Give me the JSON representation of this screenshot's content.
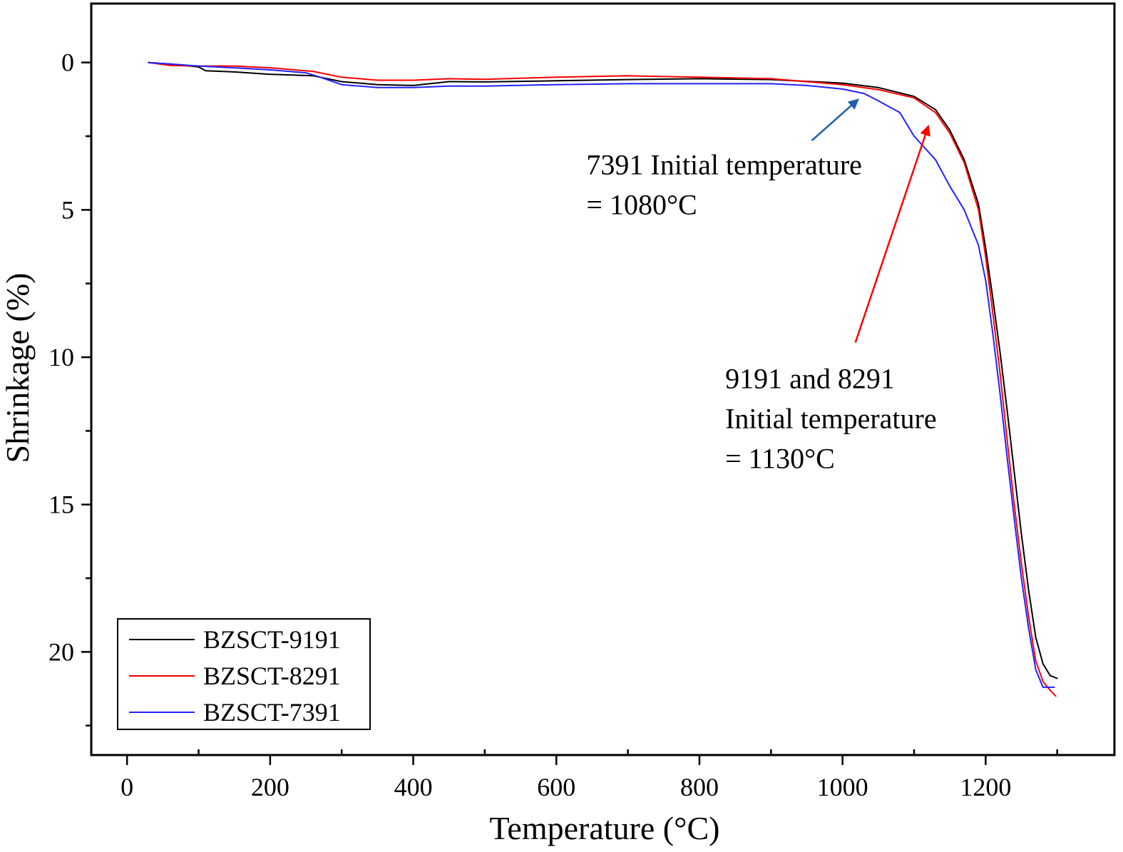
{
  "chart_data": {
    "type": "line",
    "xlabel": "Temperature (°C)",
    "ylabel": "Shrinkage (%)",
    "xlim": [
      -50,
      1380
    ],
    "ylim": [
      -2,
      23.5
    ],
    "y_inverted": true,
    "x_ticks": [
      0,
      200,
      400,
      600,
      800,
      1000,
      1200
    ],
    "x_tick_labels": [
      "0",
      "200",
      "400",
      "600",
      "800",
      "1000",
      "1200"
    ],
    "x_minor_ticks": [
      100,
      300,
      500,
      700,
      900,
      1100,
      1300
    ],
    "y_ticks": [
      0,
      5,
      10,
      15,
      20
    ],
    "y_tick_labels": [
      "0",
      "5",
      "10",
      "15",
      "20"
    ],
    "y_minor_ticks": [
      2.5,
      7.5,
      12.5,
      17.5,
      22.5
    ],
    "grid": false,
    "legend_position": "bottom-left",
    "series": [
      {
        "name": "BZSCT-9191",
        "color": "#000000",
        "x": [
          30,
          60,
          100,
          110,
          150,
          200,
          260,
          300,
          350,
          400,
          450,
          500,
          600,
          700,
          800,
          900,
          1000,
          1050,
          1100,
          1130,
          1150,
          1170,
          1190,
          1200,
          1210,
          1220,
          1230,
          1240,
          1250,
          1260,
          1270,
          1280,
          1290,
          1300
        ],
        "y": [
          0,
          0.05,
          0.15,
          0.28,
          0.32,
          0.4,
          0.45,
          0.65,
          0.75,
          0.78,
          0.65,
          0.66,
          0.62,
          0.58,
          0.55,
          0.58,
          0.7,
          0.85,
          1.15,
          1.6,
          2.3,
          3.3,
          4.8,
          6.3,
          8.0,
          9.8,
          11.8,
          13.9,
          16.0,
          17.9,
          19.5,
          20.4,
          20.8,
          20.9
        ]
      },
      {
        "name": "BZSCT-8291",
        "color": "#ff0000",
        "x": [
          30,
          60,
          100,
          150,
          200,
          260,
          300,
          350,
          400,
          450,
          500,
          600,
          700,
          800,
          900,
          1000,
          1050,
          1100,
          1130,
          1150,
          1170,
          1190,
          1200,
          1210,
          1220,
          1230,
          1240,
          1250,
          1260,
          1270,
          1280,
          1290,
          1298
        ],
        "y": [
          0,
          0.1,
          0.12,
          0.12,
          0.18,
          0.3,
          0.5,
          0.6,
          0.6,
          0.55,
          0.57,
          0.5,
          0.45,
          0.5,
          0.55,
          0.75,
          0.92,
          1.2,
          1.7,
          2.4,
          3.4,
          5.0,
          6.6,
          8.5,
          10.5,
          12.8,
          15.0,
          17.0,
          18.8,
          20.3,
          21.0,
          21.3,
          21.5
        ]
      },
      {
        "name": "BZSCT-7391",
        "color": "#2222ff",
        "x": [
          30,
          60,
          100,
          150,
          200,
          250,
          270,
          300,
          350,
          400,
          450,
          500,
          600,
          700,
          800,
          900,
          950,
          1000,
          1030,
          1050,
          1080,
          1100,
          1130,
          1150,
          1170,
          1190,
          1200,
          1210,
          1220,
          1230,
          1240,
          1250,
          1260,
          1270,
          1280,
          1290,
          1296
        ],
        "y": [
          0,
          0.05,
          0.12,
          0.18,
          0.25,
          0.35,
          0.5,
          0.75,
          0.85,
          0.85,
          0.8,
          0.8,
          0.75,
          0.72,
          0.72,
          0.72,
          0.78,
          0.9,
          1.05,
          1.3,
          1.7,
          2.5,
          3.3,
          4.2,
          5.0,
          6.2,
          7.4,
          9.2,
          11.2,
          13.4,
          15.5,
          17.5,
          19.2,
          20.6,
          21.2,
          21.2,
          21.2
        ]
      }
    ],
    "annotations": [
      {
        "lines": [
          "7391 Initial temperature",
          "= 1080°C"
        ],
        "arrow_color": "#1f5fa8",
        "arrow_to": [
          1022,
          1.25
        ],
        "arrow_from": [
          957,
          2.65
        ],
        "text_at": [
          642,
          3.8
        ]
      },
      {
        "lines": [
          "9191 and 8291",
          "Initial temperature",
          "= 1130°C"
        ],
        "arrow_color": "#ff0000",
        "arrow_to": [
          1120,
          2.15
        ],
        "arrow_from": [
          1018,
          9.5
        ],
        "text_at": [
          836,
          11.05
        ]
      }
    ]
  }
}
